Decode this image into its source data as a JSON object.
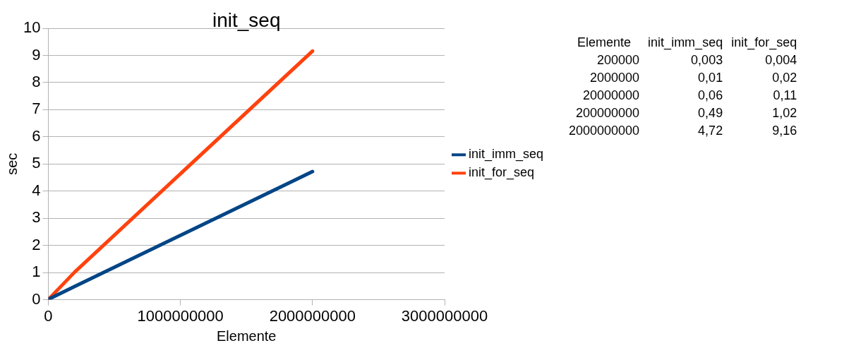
{
  "chart_data": [
    {
      "type": "line",
      "title": "init_seq",
      "xlabel": "Elemente",
      "ylabel": "sec",
      "x": [
        200000,
        2000000,
        20000000,
        200000000,
        2000000000
      ],
      "series": [
        {
          "name": "init_imm_seq",
          "color": "#004586",
          "values": [
            0.003,
            0.01,
            0.06,
            0.49,
            4.72
          ]
        },
        {
          "name": "init_for_seq",
          "color": "#ff420e",
          "values": [
            0.004,
            0.02,
            0.11,
            1.02,
            9.16
          ]
        }
      ],
      "xlim": [
        0,
        3000000000
      ],
      "xticks": [
        0,
        1000000000,
        2000000000,
        3000000000
      ],
      "ylim": [
        0,
        10
      ],
      "yticks": [
        0,
        1,
        2,
        3,
        4,
        5,
        6,
        7,
        8,
        9,
        10
      ],
      "grid": "y",
      "legend": "right",
      "marker": "none",
      "line_style": "solid"
    },
    {
      "type": "other",
      "xlabel": "Elemente",
      "categories": [
        "200000",
        "2000000",
        "20000000",
        "200000000",
        "2000000000"
      ],
      "series": [
        {
          "name": "init_imm_seq",
          "values": [
            0.003,
            0.01,
            0.06,
            0.49,
            4.72
          ],
          "value_labels": [
            "0,003",
            "0,01",
            "0,06",
            "0,49",
            "4,72"
          ]
        },
        {
          "name": "init_for_seq",
          "values": [
            0.004,
            0.02,
            0.11,
            1.02,
            9.16
          ],
          "value_labels": [
            "0,004",
            "0,02",
            "0,11",
            "1,02",
            "9,16"
          ]
        }
      ]
    }
  ]
}
